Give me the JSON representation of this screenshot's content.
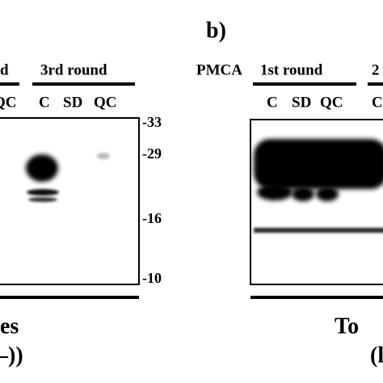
{
  "figure_label": "b)",
  "left_panel": {
    "round_labels": [
      "d",
      "3rd round"
    ],
    "lane_labels": [
      "QC",
      "C",
      "SD",
      "QC"
    ],
    "markers": [
      "-33",
      "-29",
      "-16",
      "-10"
    ],
    "caption_lines": [
      "es",
      "–))"
    ]
  },
  "right_panel": {
    "prefix": "PMCA",
    "round_labels": [
      "1st round",
      "2"
    ],
    "lane_labels": [
      "C",
      "SD",
      "QC",
      "C"
    ],
    "caption_lines": [
      "To",
      "(l"
    ]
  }
}
